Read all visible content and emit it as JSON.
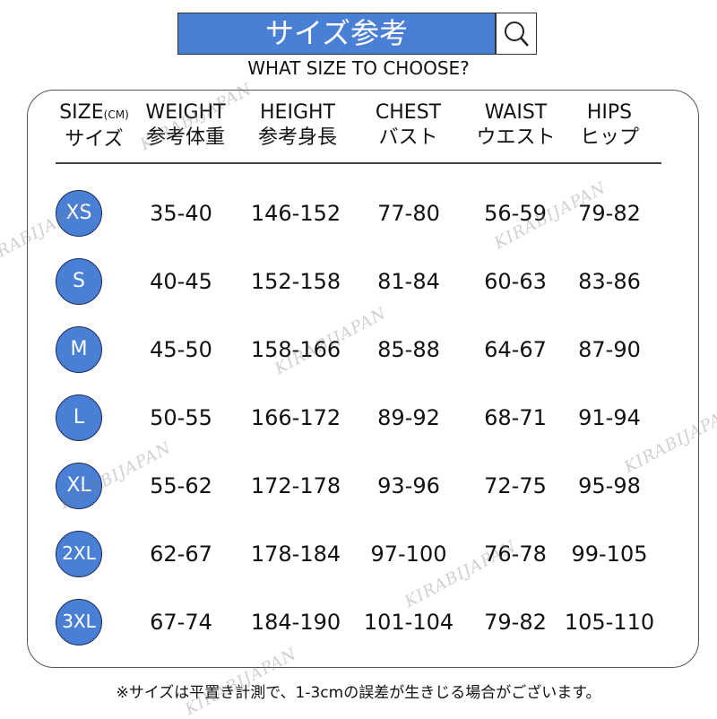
{
  "banner": {
    "title": "サイズ参考",
    "icon": "search-icon",
    "color": "#4a7fd6"
  },
  "subtitle": "WHAT SIZE TO CHOOSE?",
  "headers": [
    {
      "en": "SIZE",
      "unit": "(CM)",
      "jp": "サイズ"
    },
    {
      "en": "WEIGHT",
      "jp": "参考体重"
    },
    {
      "en": "HEIGHT",
      "jp": "参考身長"
    },
    {
      "en": "CHEST",
      "jp": "バスト"
    },
    {
      "en": "WAIST",
      "jp": "ウエスト"
    },
    {
      "en": "HIPS",
      "jp": "ヒップ"
    }
  ],
  "rows": [
    {
      "size": "XS",
      "weight": "35-40",
      "height": "146-152",
      "chest": "77-80",
      "waist": "56-59",
      "hips": "79-82"
    },
    {
      "size": "S",
      "weight": "40-45",
      "height": "152-158",
      "chest": "81-84",
      "waist": "60-63",
      "hips": "83-86"
    },
    {
      "size": "M",
      "weight": "45-50",
      "height": "158-166",
      "chest": "85-88",
      "waist": "64-67",
      "hips": "87-90"
    },
    {
      "size": "L",
      "weight": "50-55",
      "height": "166-172",
      "chest": "89-92",
      "waist": "68-71",
      "hips": "91-94"
    },
    {
      "size": "XL",
      "weight": "55-62",
      "height": "172-178",
      "chest": "93-96",
      "waist": "72-75",
      "hips": "95-98"
    },
    {
      "size": "2XL",
      "weight": "62-67",
      "height": "178-184",
      "chest": "97-100",
      "waist": "76-78",
      "hips": "99-105"
    },
    {
      "size": "3XL",
      "weight": "67-74",
      "height": "184-190",
      "chest": "101-104",
      "waist": "79-82",
      "hips": "105-110"
    }
  ],
  "footer": "※サイズは平置き計測で、1-3cmの誤差が生きじる場合がございます。",
  "watermark": "KIRABIJAPAN"
}
